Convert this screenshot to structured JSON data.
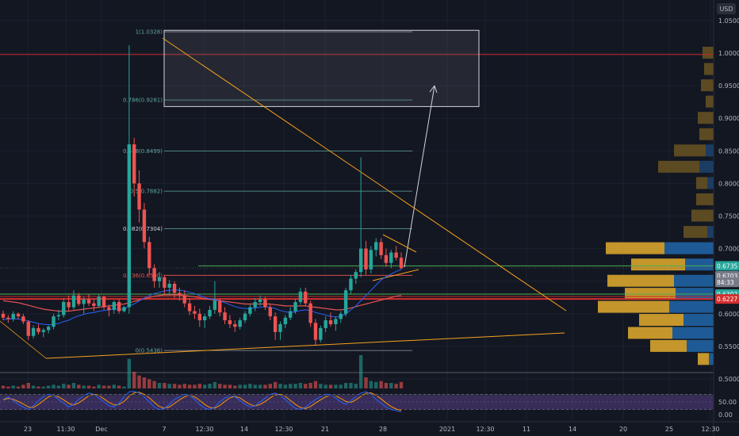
{
  "chart_data": {
    "type": "candlestick",
    "currency_label": "USD",
    "colors": {
      "background": "#131722",
      "up": "#26a69a",
      "down": "#ef5350",
      "fib": "#5fa8a0",
      "trendline": "#f7a21b",
      "support": "#d32f2f",
      "ma_fast": "#2962ff",
      "ma_slow": "#e55353",
      "stoch_k": "#2962ff",
      "stoch_d": "#ff9800",
      "vp_up": "#1e5b96",
      "vp_down": "#c4962b",
      "vp_upper": "#5c4a22"
    },
    "y_ticks": [
      "1.0500",
      "1.0000",
      "0.9500",
      "0.9000",
      "0.8500",
      "0.8000",
      "0.7500",
      "0.7000",
      "0.6500",
      "0.6000",
      "0.5500",
      "0.5000"
    ],
    "y_tick_values": [
      1.05,
      1.0,
      0.95,
      0.9,
      0.85,
      0.8,
      0.75,
      0.7,
      0.65,
      0.6,
      0.55,
      0.5
    ],
    "osc_ticks": [
      "50.00",
      "0.00"
    ],
    "x_ticks": [
      "23",
      "11:30",
      "Dec",
      "7",
      "12:30",
      "14",
      "12:30",
      "21",
      "28",
      "2021",
      "12:30",
      "11",
      "14",
      "20",
      "25",
      "12:30"
    ],
    "fib_levels": [
      {
        "label": "1(1.0328)",
        "value": 1.0328
      },
      {
        "label": "0.786(0.9281)",
        "value": 0.9281
      },
      {
        "label": "0.618(0.8499)",
        "value": 0.8499
      },
      {
        "label": "0.5(0.7882)",
        "value": 0.7882
      },
      {
        "label": "0.382(0.7304)",
        "value": 0.7304
      },
      {
        "label": "0.236(0.6590)",
        "value": 0.659
      },
      {
        "label": "0(0.5436)",
        "value": 0.5436
      }
    ],
    "price_tags": [
      {
        "label": "0.6735",
        "value": 0.6735,
        "color": "#26a69a"
      },
      {
        "label": "0.6703",
        "value": 0.6703,
        "color": "#787b86"
      },
      {
        "label": "84:33",
        "value": 0.6555,
        "color": "#787b86"
      },
      {
        "label": "0.6302",
        "value": 0.6302,
        "color": "#26a69a"
      },
      {
        "label": "0.6227",
        "value": 0.6227,
        "color": "#d32f2f"
      }
    ],
    "horizontal_lines": [
      {
        "value": 0.9978,
        "color": "#c62828"
      },
      {
        "value": 0.6227,
        "color": "#d32f2f"
      },
      {
        "value": 0.6302,
        "color": "#4caf50"
      },
      {
        "value": 0.6735,
        "color": "#4caf50"
      }
    ],
    "target_box": {
      "y_top": 1.035,
      "y_bottom": 0.918
    },
    "candles": [
      [
        0.6,
        0.605,
        0.59,
        0.594
      ],
      [
        0.594,
        0.598,
        0.586,
        0.592
      ],
      [
        0.592,
        0.604,
        0.588,
        0.6
      ],
      [
        0.6,
        0.602,
        0.592,
        0.596
      ],
      [
        0.596,
        0.6,
        0.584,
        0.588
      ],
      [
        0.588,
        0.59,
        0.56,
        0.566
      ],
      [
        0.566,
        0.582,
        0.562,
        0.578
      ],
      [
        0.578,
        0.584,
        0.568,
        0.572
      ],
      [
        0.572,
        0.578,
        0.564,
        0.575
      ],
      [
        0.575,
        0.582,
        0.57,
        0.58
      ],
      [
        0.58,
        0.6,
        0.576,
        0.596
      ],
      [
        0.596,
        0.606,
        0.59,
        0.598
      ],
      [
        0.598,
        0.624,
        0.594,
        0.618
      ],
      [
        0.618,
        0.628,
        0.605,
        0.61
      ],
      [
        0.61,
        0.636,
        0.606,
        0.628
      ],
      [
        0.628,
        0.632,
        0.612,
        0.615
      ],
      [
        0.615,
        0.626,
        0.6,
        0.622
      ],
      [
        0.622,
        0.63,
        0.612,
        0.616
      ],
      [
        0.616,
        0.622,
        0.604,
        0.612
      ],
      [
        0.612,
        0.63,
        0.61,
        0.626
      ],
      [
        0.626,
        0.628,
        0.606,
        0.61
      ],
      [
        0.61,
        0.614,
        0.596,
        0.606
      ],
      [
        0.606,
        0.62,
        0.6,
        0.618
      ],
      [
        0.618,
        0.622,
        0.6,
        0.604
      ],
      [
        0.604,
        0.612,
        0.602,
        0.61
      ],
      [
        0.61,
        1.012,
        0.6,
        0.86
      ],
      [
        0.86,
        0.87,
        0.78,
        0.8
      ],
      [
        0.8,
        0.82,
        0.74,
        0.76
      ],
      [
        0.76,
        0.77,
        0.7,
        0.71
      ],
      [
        0.71,
        0.718,
        0.66,
        0.67
      ],
      [
        0.67,
        0.676,
        0.64,
        0.65
      ],
      [
        0.65,
        0.664,
        0.64,
        0.656
      ],
      [
        0.656,
        0.66,
        0.63,
        0.64
      ],
      [
        0.64,
        0.652,
        0.628,
        0.646
      ],
      [
        0.646,
        0.65,
        0.624,
        0.632
      ],
      [
        0.632,
        0.64,
        0.62,
        0.628
      ],
      [
        0.628,
        0.636,
        0.61,
        0.616
      ],
      [
        0.616,
        0.624,
        0.598,
        0.604
      ],
      [
        0.604,
        0.612,
        0.592,
        0.6
      ],
      [
        0.6,
        0.608,
        0.58,
        0.59
      ],
      [
        0.59,
        0.6,
        0.578,
        0.596
      ],
      [
        0.596,
        0.612,
        0.592,
        0.606
      ],
      [
        0.606,
        0.65,
        0.6,
        0.62
      ],
      [
        0.62,
        0.624,
        0.596,
        0.602
      ],
      [
        0.602,
        0.61,
        0.584,
        0.59
      ],
      [
        0.59,
        0.598,
        0.578,
        0.584
      ],
      [
        0.584,
        0.59,
        0.572,
        0.58
      ],
      [
        0.58,
        0.594,
        0.576,
        0.59
      ],
      [
        0.59,
        0.604,
        0.586,
        0.6
      ],
      [
        0.6,
        0.614,
        0.596,
        0.61
      ],
      [
        0.61,
        0.624,
        0.604,
        0.618
      ],
      [
        0.618,
        0.628,
        0.612,
        0.622
      ],
      [
        0.622,
        0.626,
        0.606,
        0.61
      ],
      [
        0.61,
        0.614,
        0.59,
        0.596
      ],
      [
        0.596,
        0.602,
        0.56,
        0.572
      ],
      [
        0.572,
        0.588,
        0.56,
        0.584
      ],
      [
        0.584,
        0.598,
        0.578,
        0.594
      ],
      [
        0.594,
        0.61,
        0.59,
        0.604
      ],
      [
        0.604,
        0.622,
        0.6,
        0.618
      ],
      [
        0.618,
        0.64,
        0.614,
        0.634
      ],
      [
        0.634,
        0.64,
        0.612,
        0.616
      ],
      [
        0.616,
        0.62,
        0.58,
        0.586
      ],
      [
        0.586,
        0.592,
        0.552,
        0.56
      ],
      [
        0.56,
        0.582,
        0.556,
        0.578
      ],
      [
        0.578,
        0.596,
        0.572,
        0.59
      ],
      [
        0.59,
        0.602,
        0.58,
        0.584
      ],
      [
        0.584,
        0.596,
        0.574,
        0.592
      ],
      [
        0.592,
        0.604,
        0.586,
        0.6
      ],
      [
        0.6,
        0.64,
        0.596,
        0.636
      ],
      [
        0.636,
        0.66,
        0.63,
        0.654
      ],
      [
        0.654,
        0.668,
        0.646,
        0.664
      ],
      [
        0.664,
        0.84,
        0.656,
        0.7
      ],
      [
        0.7,
        0.712,
        0.66,
        0.668
      ],
      [
        0.668,
        0.704,
        0.662,
        0.698
      ],
      [
        0.698,
        0.716,
        0.688,
        0.71
      ],
      [
        0.71,
        0.716,
        0.684,
        0.69
      ],
      [
        0.69,
        0.7,
        0.672,
        0.678
      ],
      [
        0.678,
        0.698,
        0.67,
        0.694
      ],
      [
        0.694,
        0.704,
        0.682,
        0.686
      ],
      [
        0.686,
        0.694,
        0.668,
        0.67
      ]
    ],
    "volumes": [
      3,
      2,
      3,
      2,
      4,
      6,
      3,
      2,
      2,
      3,
      4,
      3,
      5,
      4,
      6,
      4,
      3,
      3,
      2,
      4,
      3,
      3,
      4,
      3,
      2,
      32,
      18,
      14,
      12,
      10,
      8,
      6,
      6,
      5,
      5,
      4,
      5,
      4,
      4,
      5,
      4,
      5,
      7,
      5,
      4,
      4,
      3,
      4,
      4,
      5,
      4,
      4,
      4,
      5,
      7,
      5,
      4,
      5,
      5,
      6,
      5,
      6,
      8,
      5,
      4,
      4,
      4,
      4,
      6,
      6,
      5,
      36,
      12,
      8,
      7,
      8,
      6,
      6,
      5,
      7
    ],
    "stoch_k": [
      60,
      70,
      55,
      40,
      30,
      20,
      35,
      55,
      70,
      80,
      75,
      60,
      45,
      30,
      40,
      60,
      75,
      85,
      80,
      65,
      50,
      35,
      30,
      45,
      70,
      90,
      92,
      85,
      70,
      50,
      30,
      20,
      25,
      40,
      60,
      70,
      80,
      75,
      60,
      40,
      25,
      20,
      30,
      50,
      65,
      75,
      70,
      55,
      40,
      30,
      35,
      50,
      65,
      80,
      85,
      75,
      60,
      40,
      25,
      20,
      30,
      45,
      60,
      70,
      80,
      78,
      65,
      50,
      40,
      55,
      70,
      85,
      90,
      80,
      60,
      45,
      30,
      20,
      15,
      10
    ],
    "stoch_d": [
      58,
      64,
      60,
      52,
      42,
      30,
      28,
      40,
      55,
      70,
      76,
      70,
      58,
      44,
      38,
      46,
      60,
      74,
      80,
      76,
      62,
      48,
      38,
      40,
      52,
      72,
      86,
      88,
      80,
      66,
      48,
      32,
      26,
      30,
      44,
      58,
      70,
      76,
      70,
      56,
      40,
      28,
      26,
      36,
      52,
      66,
      72,
      66,
      52,
      40,
      34,
      40,
      52,
      66,
      78,
      80,
      72,
      56,
      40,
      28,
      24,
      32,
      46,
      58,
      70,
      76,
      74,
      64,
      52,
      48,
      58,
      72,
      84,
      86,
      76,
      62,
      46,
      32,
      22,
      16
    ],
    "ma_fast": [
      0.591,
      0.592,
      0.592,
      0.592,
      0.591,
      0.589,
      0.587,
      0.585,
      0.584,
      0.583,
      0.584,
      0.585,
      0.588,
      0.59,
      0.594,
      0.597,
      0.599,
      0.601,
      0.602,
      0.604,
      0.605,
      0.606,
      0.607,
      0.607,
      0.607,
      0.612,
      0.615,
      0.62,
      0.624,
      0.628,
      0.631,
      0.633,
      0.635,
      0.636,
      0.637,
      0.636,
      0.635,
      0.633,
      0.631,
      0.628,
      0.625,
      0.623,
      0.622,
      0.62,
      0.617,
      0.614,
      0.611,
      0.609,
      0.608,
      0.608,
      0.609,
      0.61,
      0.611,
      0.61,
      0.608,
      0.605,
      0.603,
      0.602,
      0.603,
      0.605,
      0.606,
      0.605,
      0.602,
      0.6,
      0.598,
      0.596,
      0.595,
      0.596,
      0.6,
      0.606,
      0.612,
      0.62,
      0.628,
      0.636,
      0.644,
      0.652,
      0.657,
      0.661,
      0.665,
      0.668
    ],
    "ma_slow": [
      0.62,
      0.619,
      0.618,
      0.617,
      0.615,
      0.613,
      0.611,
      0.609,
      0.607,
      0.606,
      0.605,
      0.604,
      0.604,
      0.604,
      0.605,
      0.606,
      0.607,
      0.608,
      0.609,
      0.61,
      0.611,
      0.612,
      0.613,
      0.614,
      0.615,
      0.617,
      0.619,
      0.621,
      0.623,
      0.625,
      0.627,
      0.628,
      0.629,
      0.629,
      0.629,
      0.629,
      0.628,
      0.627,
      0.626,
      0.625,
      0.623,
      0.622,
      0.621,
      0.62,
      0.619,
      0.618,
      0.617,
      0.616,
      0.615,
      0.615,
      0.615,
      0.615,
      0.615,
      0.615,
      0.614,
      0.613,
      0.612,
      0.612,
      0.612,
      0.612,
      0.612,
      0.611,
      0.61,
      0.609,
      0.608,
      0.607,
      0.606,
      0.606,
      0.607,
      0.609,
      0.611,
      0.613,
      0.615,
      0.617,
      0.619,
      0.621,
      0.623,
      0.625,
      0.627,
      0.628
    ],
    "volume_profile": [
      {
        "price": 1.0,
        "up": 0,
        "down": 14,
        "upper": true
      },
      {
        "price": 0.975,
        "up": 0,
        "down": 12,
        "upper": true
      },
      {
        "price": 0.95,
        "up": 0,
        "down": 16,
        "upper": true
      },
      {
        "price": 0.925,
        "up": 0,
        "down": 10,
        "upper": true
      },
      {
        "price": 0.9,
        "up": 0,
        "down": 20,
        "upper": true
      },
      {
        "price": 0.875,
        "up": 0,
        "down": 18,
        "upper": true
      },
      {
        "price": 0.85,
        "up": 10,
        "down": 40,
        "upper": true
      },
      {
        "price": 0.825,
        "up": 18,
        "down": 52,
        "upper": true
      },
      {
        "price": 0.8,
        "up": 8,
        "down": 14,
        "upper": true
      },
      {
        "price": 0.775,
        "up": 0,
        "down": 22,
        "upper": true
      },
      {
        "price": 0.75,
        "up": 0,
        "down": 28,
        "upper": true
      },
      {
        "price": 0.725,
        "up": 8,
        "down": 30,
        "upper": true
      },
      {
        "price": 0.7,
        "up": 62,
        "down": 74,
        "upper": false
      },
      {
        "price": 0.675,
        "up": 36,
        "down": 68,
        "upper": false
      },
      {
        "price": 0.65,
        "up": 50,
        "down": 84,
        "upper": false
      },
      {
        "price": 0.63,
        "up": 48,
        "down": 64,
        "upper": false
      },
      {
        "price": 0.61,
        "up": 56,
        "down": 90,
        "upper": false
      },
      {
        "price": 0.59,
        "up": 38,
        "down": 56,
        "upper": false
      },
      {
        "price": 0.57,
        "up": 52,
        "down": 56,
        "upper": false
      },
      {
        "price": 0.55,
        "up": 34,
        "down": 46,
        "upper": false
      },
      {
        "price": 0.53,
        "up": 6,
        "down": 14,
        "upper": false
      }
    ]
  }
}
